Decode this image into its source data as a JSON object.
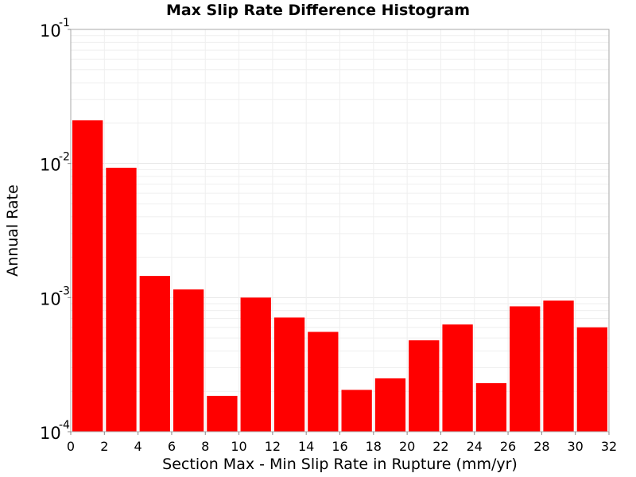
{
  "chart_data": {
    "type": "bar",
    "title": "Max Slip Rate Difference Histogram",
    "xlabel": "Section Max - Min Slip Rate in Rupture (mm/yr)",
    "ylabel": "Annual Rate",
    "x_scale": "linear",
    "y_scale": "log",
    "xlim": [
      0,
      32
    ],
    "ylim": [
      0.0001,
      0.1
    ],
    "xticks": [
      "0",
      "2",
      "4",
      "6",
      "8",
      "10",
      "12",
      "14",
      "16",
      "18",
      "20",
      "22",
      "24",
      "26",
      "28",
      "30",
      "32"
    ],
    "yticks": [
      {
        "base": "10",
        "exp": "-4"
      },
      {
        "base": "10",
        "exp": "-3"
      },
      {
        "base": "10",
        "exp": "-2"
      },
      {
        "base": "10",
        "exp": "-1"
      }
    ],
    "bin_edges": [
      0,
      2,
      4,
      6,
      8,
      10,
      12,
      14,
      16,
      18,
      20,
      22,
      24,
      26,
      28,
      30,
      32
    ],
    "values": [
      0.021,
      0.0093,
      0.00145,
      0.00115,
      0.000185,
      0.001,
      0.00071,
      0.000555,
      0.000205,
      0.00025,
      0.00048,
      0.00063,
      0.00023,
      0.00086,
      0.00095,
      0.0006
    ],
    "bar_color": "#ff0000",
    "grid": true
  }
}
